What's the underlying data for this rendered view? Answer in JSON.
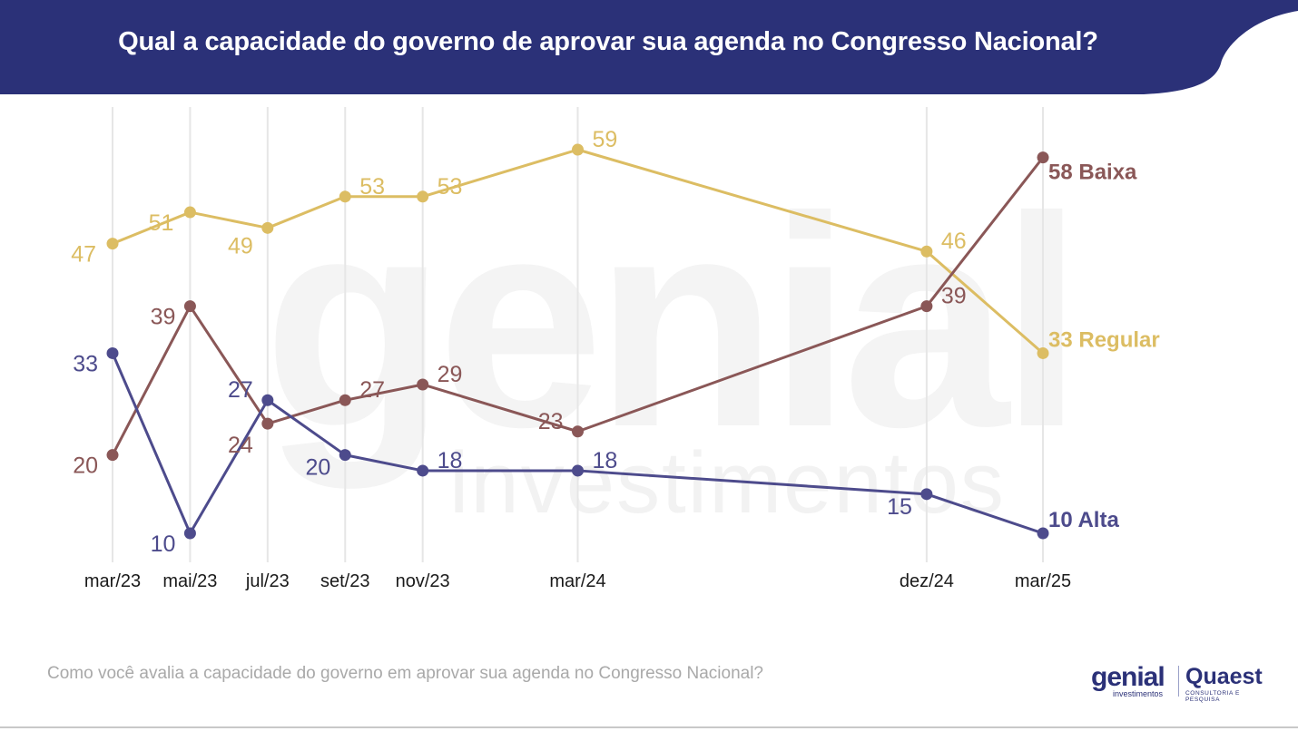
{
  "title": "Qual a capacidade do governo de aprovar sua agenda no Congresso Nacional?",
  "footnote": "Como você avalia a capacidade do governo em aprovar sua agenda no Congresso Nacional?",
  "watermark": {
    "word": "genial",
    "sub": "investimentos"
  },
  "logos": {
    "genial": "genial",
    "genial_sub": "investimentos",
    "quaest": "Quaest",
    "quaest_sub": "CONSULTORIA E PESQUISA"
  },
  "colors": {
    "header": "#2b3178",
    "regular": "#dcbd63",
    "baixa": "#8a5757",
    "alta": "#4d4b8c",
    "grid": "#e6e6e6"
  },
  "chart_data": {
    "type": "line",
    "x": [
      "mar/23",
      "mai/23",
      "jul/23",
      "set/23",
      "nov/23",
      "mar/24",
      "dez/24",
      "mar/25"
    ],
    "x_months": [
      0,
      2,
      4,
      6,
      8,
      12,
      21,
      24
    ],
    "ylim": [
      10,
      59
    ],
    "grid": "vertical",
    "series": [
      {
        "key": "regular",
        "name": "Regular",
        "end_label": "33 Regular",
        "values": [
          47,
          51,
          49,
          53,
          53,
          59,
          46,
          33
        ]
      },
      {
        "key": "baixa",
        "name": "Baixa",
        "end_label": "58 Baixa",
        "values": [
          20,
          39,
          24,
          27,
          29,
          23,
          39,
          58
        ]
      },
      {
        "key": "alta",
        "name": "Alta",
        "end_label": "10 Alta",
        "values": [
          33,
          10,
          27,
          20,
          18,
          18,
          15,
          10
        ]
      }
    ]
  }
}
